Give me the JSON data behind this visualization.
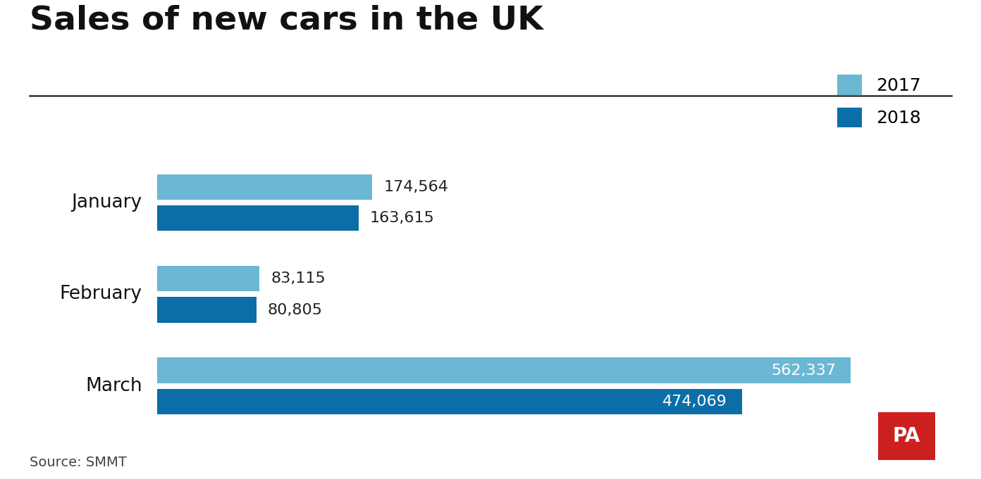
{
  "title": "Sales of new cars in the UK",
  "source": "Source: SMMT",
  "categories": [
    "January",
    "February",
    "March"
  ],
  "values_2017": [
    174564,
    83115,
    562337
  ],
  "values_2018": [
    163615,
    80805,
    474069
  ],
  "labels_2017": [
    "174,564",
    "83,115",
    "562,337"
  ],
  "labels_2018": [
    "163,615",
    "80,805",
    "474,069"
  ],
  "color_2017": "#6BB8D4",
  "color_2018": "#0B6EA8",
  "background_color": "#FFFFFF",
  "title_fontsize": 34,
  "label_fontsize": 16,
  "category_fontsize": 19,
  "legend_fontsize": 18,
  "source_fontsize": 14,
  "bar_height": 0.28,
  "bar_gap": 0.06,
  "xlim": [
    0,
    620000
  ],
  "ylim": [
    -0.7,
    2.85
  ],
  "group_positions": [
    2.0,
    1.0,
    0.0
  ],
  "pa_box_color": "#CC2020",
  "pa_text_color": "#FFFFFF",
  "line_color": "#333333",
  "label_color_dark": "#222222",
  "label_color_light": "#FFFFFF",
  "category_label_color": "#111111"
}
